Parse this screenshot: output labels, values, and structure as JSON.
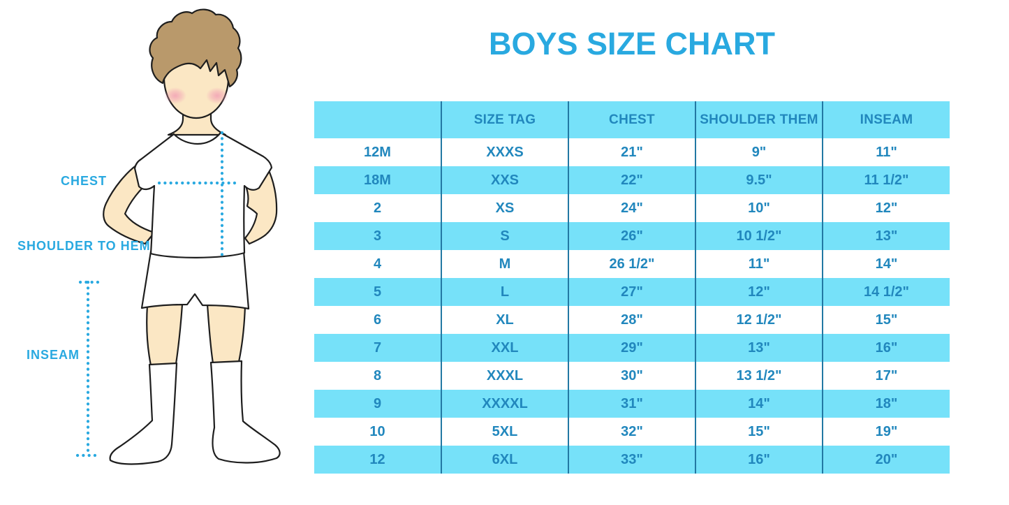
{
  "title": "BOYS SIZE CHART",
  "colors": {
    "accent_blue": "#29A9E0",
    "band": "#76E1F9",
    "table_text": "#2187BD",
    "divider": "#2278A3",
    "skin": "#FBE7C4",
    "hair": "#B9996B",
    "cheek": "#F2A0B5",
    "outline": "#1E1E1E"
  },
  "figure": {
    "labels": {
      "chest": "CHEST",
      "shoulder_to_hem": "SHOULDER TO HEM",
      "inseam": "INSEAM"
    }
  },
  "table": {
    "columns": [
      "",
      "SIZE TAG",
      "CHEST",
      "SHOULDER THEM",
      "INSEAM"
    ],
    "rows": [
      [
        "12M",
        "XXXS",
        "21\"",
        "9\"",
        "11\""
      ],
      [
        "18M",
        "XXS",
        "22\"",
        "9.5\"",
        "11 1/2\""
      ],
      [
        "2",
        "XS",
        "24\"",
        "10\"",
        "12\""
      ],
      [
        "3",
        "S",
        "26\"",
        "10 1/2\"",
        "13\""
      ],
      [
        "4",
        "M",
        "26 1/2\"",
        "11\"",
        "14\""
      ],
      [
        "5",
        "L",
        "27\"",
        "12\"",
        "14 1/2\""
      ],
      [
        "6",
        "XL",
        "28\"",
        "12 1/2\"",
        "15\""
      ],
      [
        "7",
        "XXL",
        "29\"",
        "13\"",
        "16\""
      ],
      [
        "8",
        "XXXL",
        "30\"",
        "13 1/2\"",
        "17\""
      ],
      [
        "9",
        "XXXXL",
        "31\"",
        "14\"",
        "18\""
      ],
      [
        "10",
        "5XL",
        "32\"",
        "15\"",
        "19\""
      ],
      [
        "12",
        "6XL",
        "33\"",
        "16\"",
        "20\""
      ]
    ]
  },
  "chart_data": {
    "type": "table",
    "title": "BOYS SIZE CHART",
    "columns": [
      "",
      "SIZE TAG",
      "CHEST",
      "SHOULDER THEM",
      "INSEAM"
    ],
    "rows": [
      [
        "12M",
        "XXXS",
        "21\"",
        "9\"",
        "11\""
      ],
      [
        "18M",
        "XXS",
        "22\"",
        "9.5\"",
        "11 1/2\""
      ],
      [
        "2",
        "XS",
        "24\"",
        "10\"",
        "12\""
      ],
      [
        "3",
        "S",
        "26\"",
        "10 1/2\"",
        "13\""
      ],
      [
        "4",
        "M",
        "26 1/2\"",
        "11\"",
        "14\""
      ],
      [
        "5",
        "L",
        "27\"",
        "12\"",
        "14 1/2\""
      ],
      [
        "6",
        "XL",
        "28\"",
        "12 1/2\"",
        "15\""
      ],
      [
        "7",
        "XXL",
        "29\"",
        "13\"",
        "16\""
      ],
      [
        "8",
        "XXXL",
        "30\"",
        "13 1/2\"",
        "17\""
      ],
      [
        "9",
        "XXXXL",
        "31\"",
        "14\"",
        "18\""
      ],
      [
        "10",
        "5XL",
        "32\"",
        "15\"",
        "19\""
      ],
      [
        "12",
        "6XL",
        "33\"",
        "16\"",
        "20\""
      ]
    ]
  }
}
